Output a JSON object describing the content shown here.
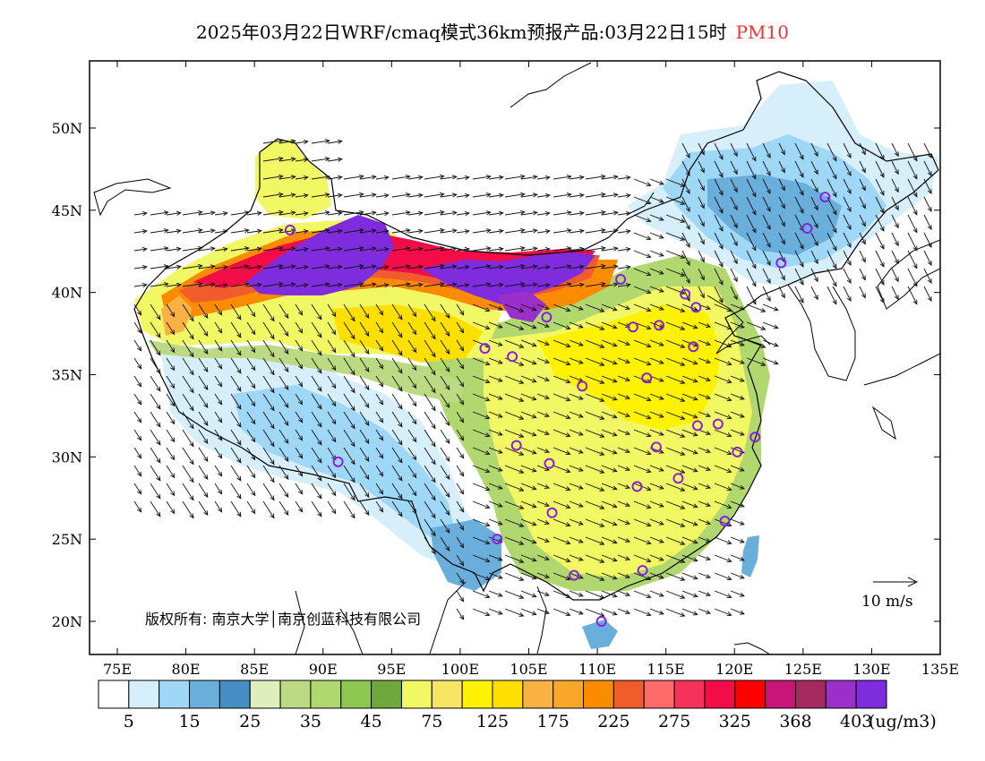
{
  "title": {
    "main": "2025年03月22日WRF/cmaq模式36km预报产品:03月22日15时",
    "variable": "PM10",
    "variable_color": "#ff2d2d"
  },
  "axes": {
    "lat_ticks": [
      {
        "v": 50,
        "label": "50N"
      },
      {
        "v": 45,
        "label": "45N"
      },
      {
        "v": 40,
        "label": "40N"
      },
      {
        "v": 35,
        "label": "35N"
      },
      {
        "v": 30,
        "label": "30N"
      },
      {
        "v": 25,
        "label": "25N"
      },
      {
        "v": 20,
        "label": "20N"
      }
    ],
    "lon_ticks": [
      {
        "v": 75,
        "label": "75E"
      },
      {
        "v": 80,
        "label": "80E"
      },
      {
        "v": 85,
        "label": "85E"
      },
      {
        "v": 90,
        "label": "90E"
      },
      {
        "v": 95,
        "label": "95E"
      },
      {
        "v": 100,
        "label": "100E"
      },
      {
        "v": 105,
        "label": "105E"
      },
      {
        "v": 110,
        "label": "110E"
      },
      {
        "v": 115,
        "label": "115E"
      },
      {
        "v": 120,
        "label": "120E"
      },
      {
        "v": 125,
        "label": "125E"
      },
      {
        "v": 130,
        "label": "130E"
      },
      {
        "v": 135,
        "label": "135E"
      }
    ],
    "lon_range": [
      73,
      135
    ],
    "lat_range": [
      18,
      54
    ]
  },
  "copyright": "版权所有: 南京大学│南京创蓝科技有限公司",
  "wind_scale_label": "10 m/s",
  "colorbar": {
    "colors": [
      "#ffffff",
      "#d6effb",
      "#9fd8f6",
      "#6aaedc",
      "#458ec4",
      "#dfeebd",
      "#bcda83",
      "#b0d86f",
      "#8ec850",
      "#6fa83b",
      "#f2f863",
      "#f6e462",
      "#fff200",
      "#fee000",
      "#f8b142",
      "#f9a72a",
      "#fb8b00",
      "#f15c2c",
      "#fe6a6a",
      "#f5335a",
      "#f20c48",
      "#ff0000",
      "#c8157a",
      "#a52a5e",
      "#9b2fc9",
      "#7e2cdd"
    ],
    "labels": [
      "5",
      "15",
      "25",
      "35",
      "45",
      "75",
      "125",
      "175",
      "225",
      "275",
      "325",
      "368",
      "403"
    ],
    "unit": "(ug/m3)"
  },
  "stations_lonlat": [
    [
      87.6,
      43.8
    ],
    [
      126.6,
      45.8
    ],
    [
      125.3,
      43.9
    ],
    [
      123.4,
      41.8
    ],
    [
      111.7,
      40.8
    ],
    [
      116.4,
      39.9
    ],
    [
      117.2,
      39.1
    ],
    [
      114.5,
      38.0
    ],
    [
      112.6,
      37.9
    ],
    [
      117.0,
      36.7
    ],
    [
      106.3,
      38.5
    ],
    [
      103.8,
      36.1
    ],
    [
      101.8,
      36.6
    ],
    [
      108.9,
      34.3
    ],
    [
      113.6,
      34.8
    ],
    [
      118.8,
      32.0
    ],
    [
      117.3,
      31.9
    ],
    [
      120.2,
      30.3
    ],
    [
      121.5,
      31.2
    ],
    [
      114.3,
      30.6
    ],
    [
      104.1,
      30.7
    ],
    [
      106.5,
      29.6
    ],
    [
      112.9,
      28.2
    ],
    [
      115.9,
      28.7
    ],
    [
      106.7,
      26.6
    ],
    [
      102.7,
      25.0
    ],
    [
      108.3,
      22.8
    ],
    [
      113.3,
      23.1
    ],
    [
      119.3,
      26.1
    ],
    [
      110.3,
      20.0
    ],
    [
      91.1,
      29.7
    ]
  ]
}
